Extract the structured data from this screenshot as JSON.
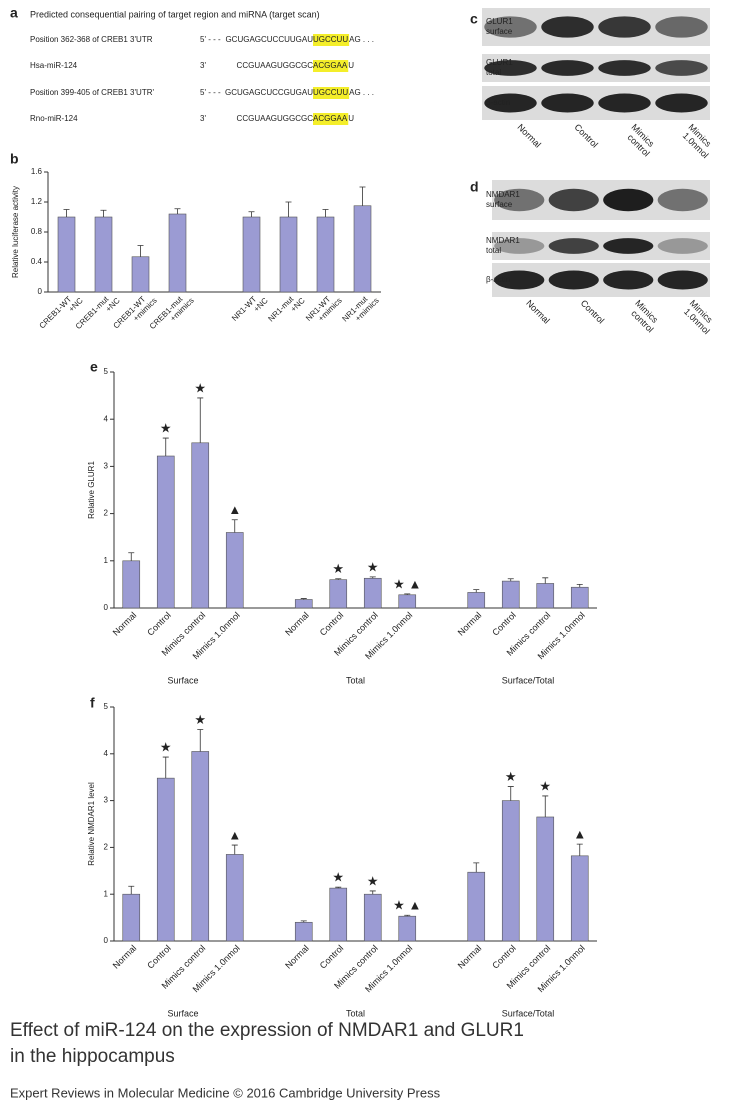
{
  "panel_a": {
    "label": "a",
    "title": "Predicted consequential pairing of target region and miRNA (target scan)",
    "rows": [
      {
        "name": "Position 362-368 of CREB1 3'UTR",
        "end": "5' - - -",
        "seq": "GCUGAGCUCCUUGAU",
        "site": "UGCCUU",
        "tail": "AG . . ."
      },
      {
        "name": "Hsa-miR-124",
        "end": "3'",
        "seq": "CCGUAAGUGGCGC",
        "site": "ACGGAA",
        "tail": "U"
      },
      {
        "name": "Position 399-405 of CREB1 3'UTR'",
        "end": "5' - - -",
        "seq": "GCUGAGCUCCGUGAU",
        "site": "UGCCUU",
        "tail": "AG . . ."
      },
      {
        "name": "Rno-miR-124",
        "end": "3'",
        "seq": "CCGUAAGUGGCGC",
        "site": "ACGGAA",
        "tail": "U"
      }
    ]
  },
  "blots": [
    {
      "label": "c",
      "rows": [
        [
          "GLUR1",
          "surface"
        ],
        [
          "GLUR1",
          "total"
        ],
        [
          "β-actin"
        ]
      ],
      "lanes": [
        [
          "Normal"
        ],
        [
          "Control"
        ],
        [
          "Mimics",
          "control"
        ],
        [
          "Mimics",
          "1.0nmol"
        ]
      ]
    },
    {
      "label": "d",
      "rows": [
        [
          "NMDAR1",
          "surface"
        ],
        [
          "NMDAR1",
          "total"
        ],
        [
          "β-actin"
        ]
      ],
      "lanes": [
        [
          "Normal"
        ],
        [
          "Control"
        ],
        [
          "Mimics",
          "control"
        ],
        [
          "Mimics",
          "1.0nmol"
        ]
      ]
    }
  ],
  "chart_data": [
    {
      "type": "bar",
      "label": "b",
      "y_label": "Relative luciferase activity",
      "categories": [
        [
          "CREB1-WT",
          "+NC"
        ],
        [
          "CREB1-mut",
          "+NC"
        ],
        [
          "CREB1-WT",
          "+mimics"
        ],
        [
          "CREB1-mut",
          "+mimics"
        ],
        null,
        [
          "NR1-WT",
          "+NC"
        ],
        [
          "NR1-mut",
          "+NC"
        ],
        [
          "NR1-WT",
          "+mimics"
        ],
        [
          "NR1-mut",
          "+mimics"
        ]
      ],
      "values": [
        1.0,
        1.0,
        0.47,
        1.04,
        null,
        1.0,
        1.0,
        1.0,
        1.15
      ],
      "errors": [
        0.1,
        0.09,
        0.15,
        0.07,
        null,
        0.07,
        0.2,
        0.1,
        0.25
      ],
      "color": "#9b9bd3",
      "ylim": [
        0,
        1.6
      ],
      "yticks": [
        0,
        0.4,
        0.8,
        1.2,
        1.6
      ]
    },
    {
      "type": "bar",
      "label": "e",
      "y_label": "Relative GLUR1",
      "categories": [
        "Normal",
        "Control",
        "Mimics control",
        "Mimics 1.0nmol",
        null,
        "Normal",
        "Control",
        "Mimics control",
        "Mimics 1.0nmol",
        null,
        "Normal",
        "Control",
        "Mimics control",
        "Mimics 1.0nmol"
      ],
      "values": [
        1.0,
        3.22,
        3.5,
        1.6,
        null,
        0.18,
        0.6,
        0.63,
        0.28,
        null,
        0.33,
        0.57,
        0.52,
        0.44
      ],
      "errors": [
        0.17,
        0.38,
        0.95,
        0.27,
        null,
        0.02,
        0.02,
        0.03,
        0.02,
        null,
        0.06,
        0.05,
        0.12,
        0.06
      ],
      "markers": [
        null,
        "★",
        "★",
        "▲",
        null,
        null,
        "★",
        "★",
        "★ ▲",
        null,
        null,
        null,
        null,
        null
      ],
      "groups": [
        "Surface",
        "Total",
        "Surface/Total"
      ],
      "color": "#9b9bd3",
      "ylim": [
        0,
        5
      ],
      "yticks": [
        0,
        1,
        2,
        3,
        4,
        5
      ]
    },
    {
      "type": "bar",
      "label": "f",
      "y_label": "Relative NMDAR1 level",
      "categories": [
        "Normal",
        "Control",
        "Mimics control",
        "Mimics 1.0nmol",
        null,
        "Normal",
        "Control",
        "Mimics control",
        "Mimics 1.0nmol",
        null,
        "Normal",
        "Control",
        "Mimics control",
        "Mimics 1.0nmol"
      ],
      "values": [
        1.0,
        3.48,
        4.05,
        1.85,
        null,
        0.4,
        1.13,
        1.0,
        0.53,
        null,
        1.47,
        3.0,
        2.65,
        1.82
      ],
      "errors": [
        0.17,
        0.45,
        0.47,
        0.2,
        null,
        0.03,
        0.02,
        0.07,
        0.02,
        null,
        0.2,
        0.3,
        0.45,
        0.25
      ],
      "markers": [
        null,
        "★",
        "★",
        "▲",
        null,
        null,
        "★",
        "★",
        "★ ▲",
        null,
        null,
        "★",
        "★",
        "▲"
      ],
      "groups": [
        "Surface",
        "Total",
        "Surface/Total"
      ],
      "color": "#9b9bd3",
      "ylim": [
        0,
        5
      ],
      "yticks": [
        0,
        1,
        2,
        3,
        4,
        5
      ]
    }
  ],
  "caption": [
    "Effect of miR-124 on the expression of NMDAR1 and GLUR1",
    "in the hippocampus"
  ],
  "source": "Expert Reviews in Molecular Medicine © 2016 Cambridge University Press"
}
